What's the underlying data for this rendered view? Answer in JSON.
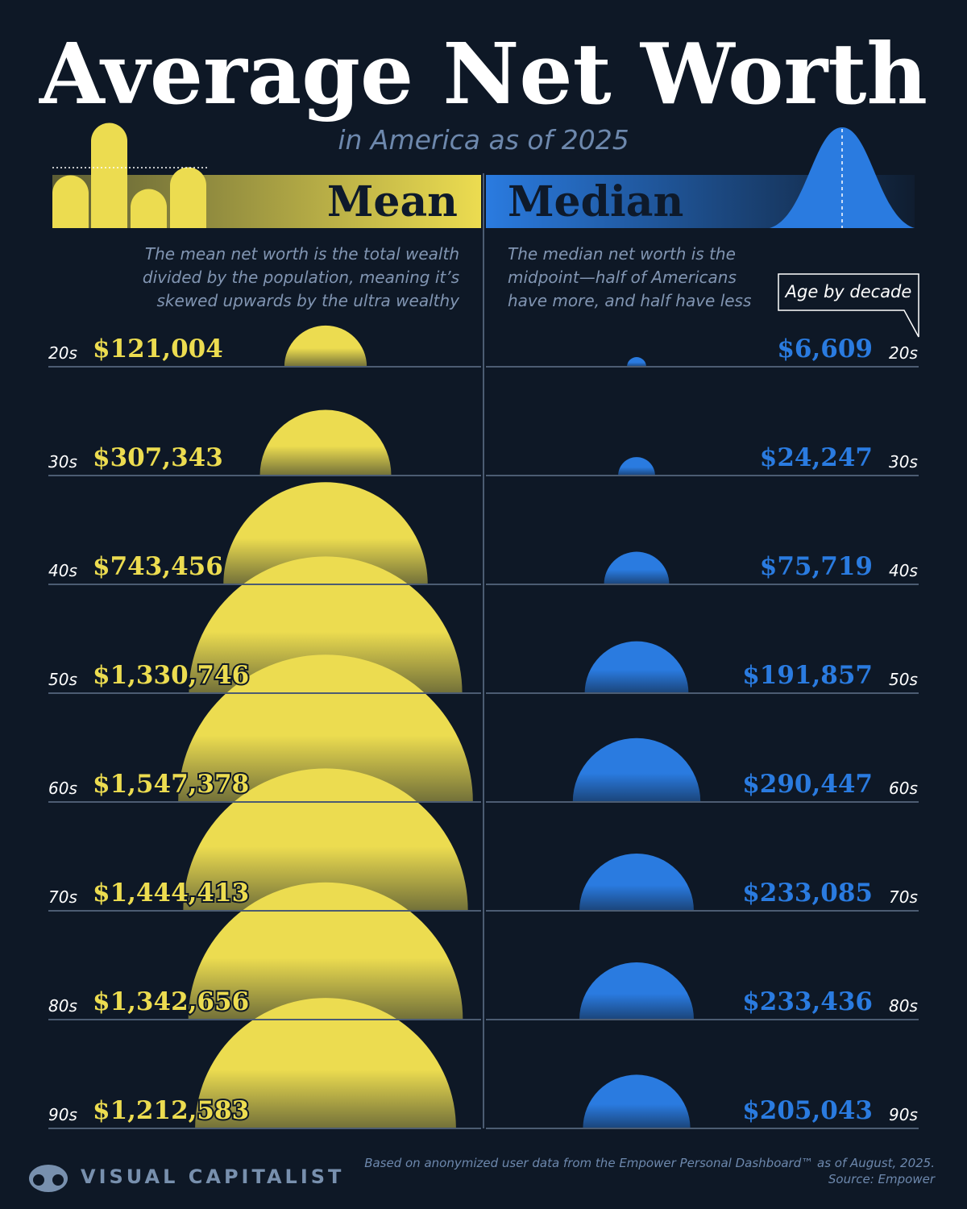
{
  "chart_data": {
    "type": "semicircle",
    "title": "Average Net Worth",
    "subtitle": "in America as of 2025",
    "categories": [
      "20s",
      "30s",
      "40s",
      "50s",
      "60s",
      "70s",
      "80s",
      "90s"
    ],
    "series": [
      {
        "name": "Mean",
        "color": "#ecdc50",
        "description": [
          "The mean net worth is the total wealth",
          "divided by the population, meaning it’s",
          "skewed upwards by the ultra wealthy"
        ],
        "values": [
          121004,
          307343,
          743456,
          1330746,
          1547378,
          1444413,
          1342656,
          1212583
        ],
        "value_labels": [
          "$121,004",
          "$307,343",
          "$743,456",
          "$1,330,746",
          "$1,547,378",
          "$1,444,413",
          "$1,342,656",
          "$1,212,583"
        ]
      },
      {
        "name": "Median",
        "color": "#2a7be0",
        "description": [
          "The median net worth is the",
          "midpoint—half of Americans",
          "have more, and half have less"
        ],
        "values": [
          6609,
          24247,
          75719,
          191857,
          290447,
          233085,
          233436,
          205043
        ],
        "value_labels": [
          "$6,609",
          "$24,247",
          "$75,719",
          "$191,857",
          "$290,447",
          "$233,085",
          "$233,436",
          "$205,043"
        ]
      }
    ],
    "annotation": "Age by decade",
    "notes": [
      "Based on anonymized user data from the Empower Personal Dashboard™ as of August, 2025.",
      "Source: Empower"
    ],
    "brand": "VISUAL CAPITALIST"
  }
}
